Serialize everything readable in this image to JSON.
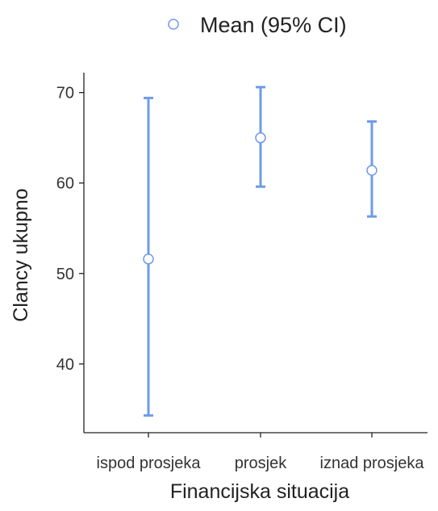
{
  "chart_data": {
    "type": "errorbar",
    "xlabel": "Financijska situacija",
    "ylabel": "Clancy ukupno",
    "categories": [
      "ispod prosjeka",
      "prosjek",
      "iznad prosjeka"
    ],
    "series": [
      {
        "name": "Mean (95% CI)",
        "mean": [
          51.6,
          65.0,
          61.4
        ],
        "lower": [
          34.3,
          59.6,
          56.3
        ],
        "upper": [
          69.4,
          70.6,
          66.8
        ]
      }
    ],
    "yticks": [
      40,
      50,
      60,
      70
    ],
    "ylim": [
      32.4,
      72.2
    ],
    "grid": false,
    "legend_position": "top",
    "colors": {
      "series": "#6f9be8",
      "axis": "#222222",
      "point_fill": "#ffffff"
    }
  }
}
